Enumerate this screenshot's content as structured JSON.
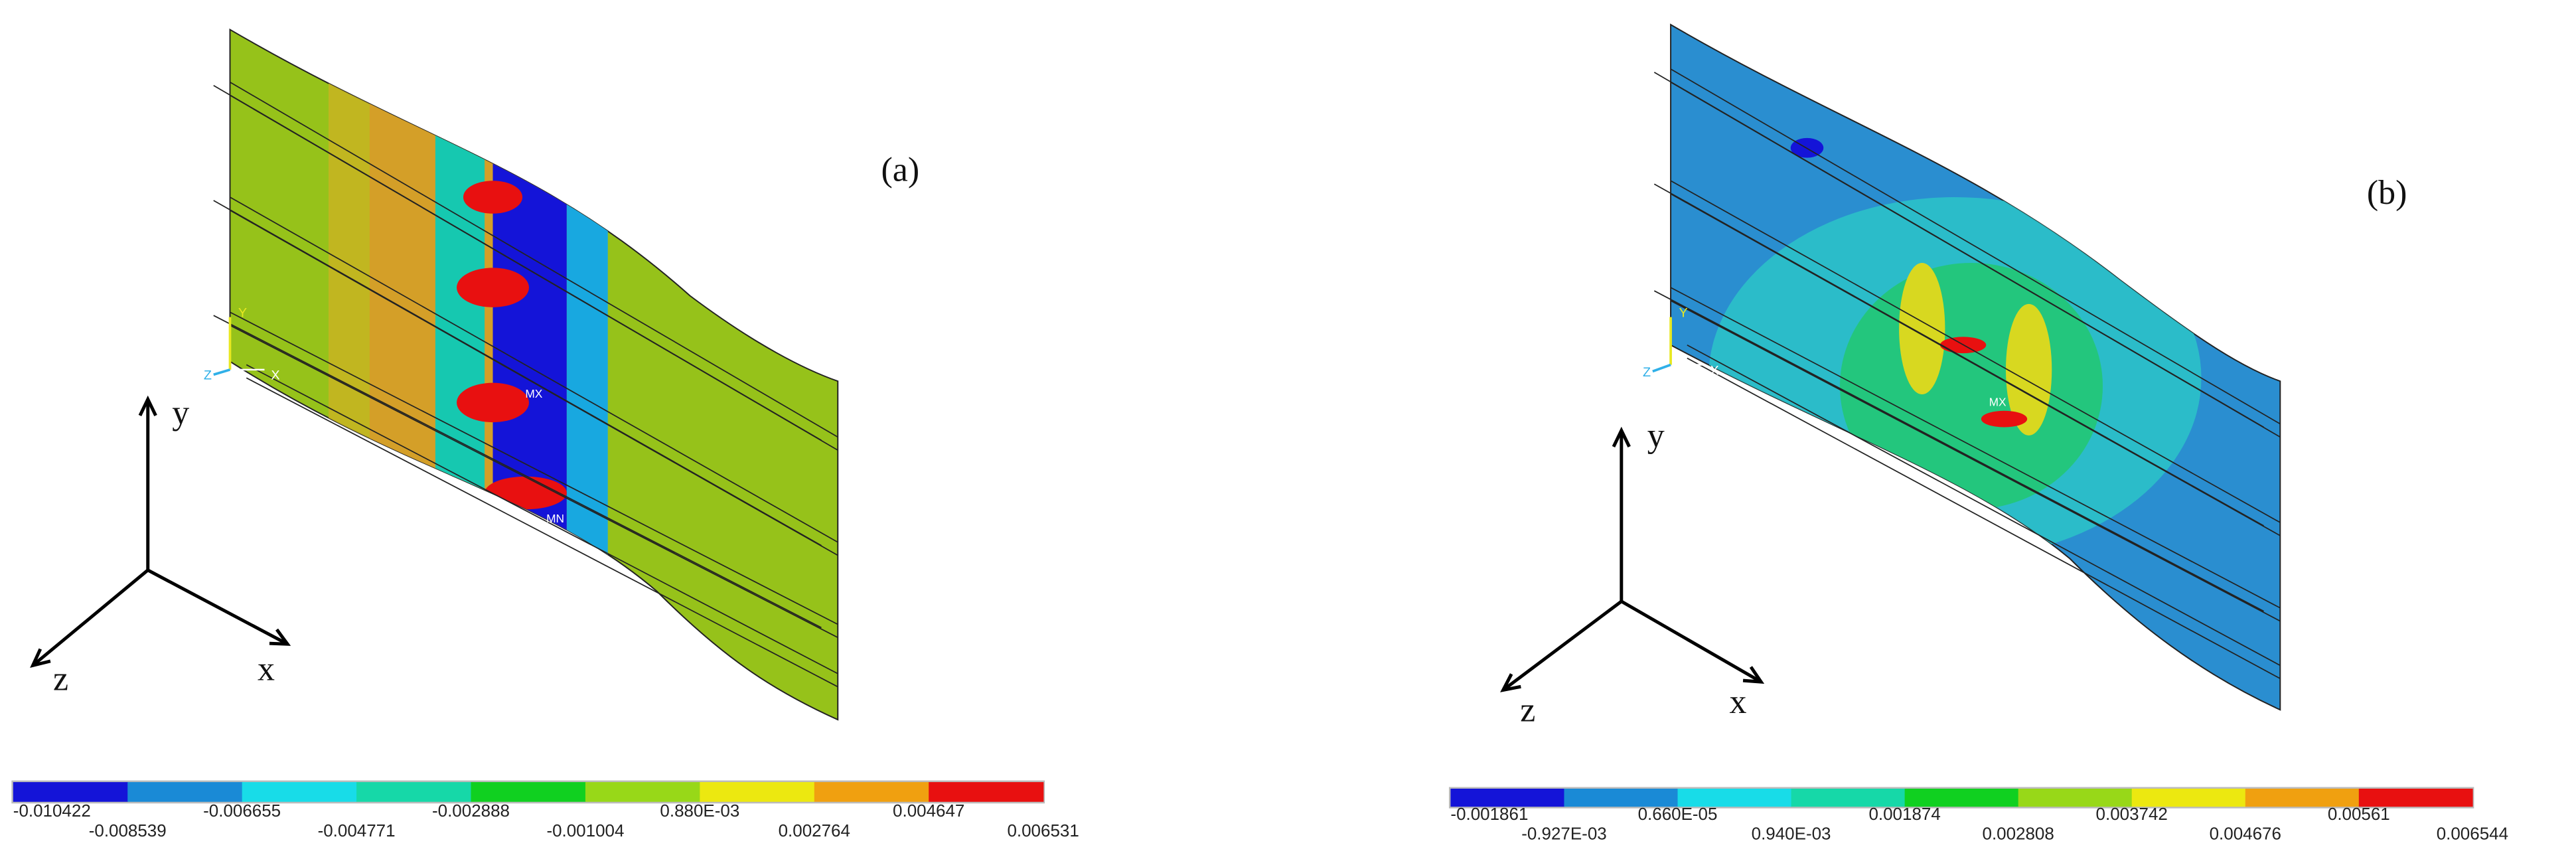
{
  "panels": [
    {
      "label": "(a)",
      "axes": {
        "x": "x",
        "y": "y",
        "z": "z"
      },
      "triad": {
        "x": "X",
        "y": "Y",
        "z": "Z"
      },
      "markers": [
        "MX",
        "MN"
      ],
      "colorbar": {
        "labels": [
          "-0.010422",
          "-0.008539",
          "-0.006655",
          "-0.004771",
          "-0.002888",
          "-0.001004",
          "0.880E-03",
          "0.002764",
          "0.004647",
          "0.006531"
        ],
        "colors": [
          "#1414d8",
          "#1a8ad6",
          "#18dce8",
          "#16d8a8",
          "#10d020",
          "#98d818",
          "#ece810",
          "#f0a010",
          "#e81010"
        ]
      }
    },
    {
      "label": "(b)",
      "axes": {
        "x": "x",
        "y": "y",
        "z": "z"
      },
      "triad": {
        "x": "X",
        "y": "Y",
        "z": "Z"
      },
      "markers": [
        "MX"
      ],
      "colorbar": {
        "labels": [
          "-0.001861",
          "-0.927E-03",
          "0.660E-05",
          "0.940E-03",
          "0.001874",
          "0.002808",
          "0.003742",
          "0.004676",
          "0.00561",
          "0.006544"
        ],
        "colors": [
          "#1414d8",
          "#1a8ad6",
          "#18dce8",
          "#16d8a8",
          "#10d020",
          "#98d818",
          "#ece810",
          "#f0a010",
          "#e81010"
        ]
      }
    }
  ]
}
